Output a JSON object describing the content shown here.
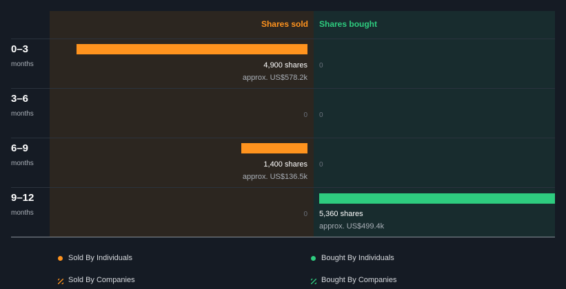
{
  "chart_data": {
    "type": "bar",
    "title": "",
    "colors": {
      "sold": "#ff931e",
      "bought": "#2ecc7f",
      "sold_panel": "#2c2620",
      "bought_panel": "#182c2e",
      "page_bg": "#151b24"
    },
    "columns": {
      "sold": "Shares sold",
      "bought": "Shares bought"
    },
    "categories": [
      {
        "range": "0–3",
        "unit": "months"
      },
      {
        "range": "3–6",
        "unit": "months"
      },
      {
        "range": "6–9",
        "unit": "months"
      },
      {
        "range": "9–12",
        "unit": "months"
      }
    ],
    "series": [
      {
        "name": "Shares sold",
        "values": [
          4900,
          0,
          1400,
          0
        ],
        "labels": [
          "4,900 shares",
          "0",
          "1,400 shares",
          "0"
        ],
        "approx": [
          "approx. US$578.2k",
          "",
          "approx. US$136.5k",
          ""
        ]
      },
      {
        "name": "Shares bought",
        "values": [
          0,
          0,
          0,
          5360
        ],
        "labels": [
          "0",
          "0",
          "0",
          "5,360 shares"
        ],
        "approx": [
          "",
          "",
          "",
          "approx. US$499.4k"
        ]
      }
    ],
    "max_value": 5360,
    "legend": [
      {
        "label": "Sold By Individuals",
        "swatch": "dot",
        "color": "#ff931e"
      },
      {
        "label": "Bought By Individuals",
        "swatch": "dot",
        "color": "#2ecc7f"
      },
      {
        "label": "Sold By Companies",
        "swatch": "hatch",
        "color": "#ff931e"
      },
      {
        "label": "Bought By Companies",
        "swatch": "hatch",
        "color": "#2ecc7f"
      }
    ]
  }
}
